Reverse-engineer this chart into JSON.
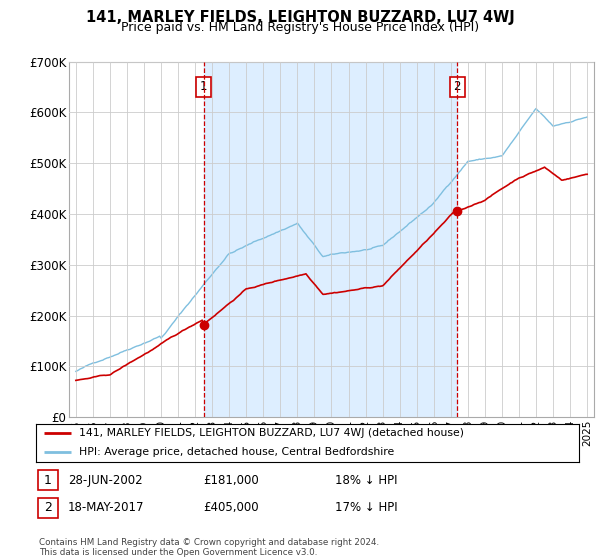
{
  "title": "141, MARLEY FIELDS, LEIGHTON BUZZARD, LU7 4WJ",
  "subtitle": "Price paid vs. HM Land Registry's House Price Index (HPI)",
  "ylim": [
    0,
    700000
  ],
  "yticks": [
    0,
    100000,
    200000,
    300000,
    400000,
    500000,
    600000,
    700000
  ],
  "ytick_labels": [
    "£0",
    "£100K",
    "£200K",
    "£300K",
    "£400K",
    "£500K",
    "£600K",
    "£700K"
  ],
  "hpi_color": "#7fbfdf",
  "price_color": "#cc0000",
  "fill_color": "#ddeeff",
  "marker1_x": 2002.5,
  "marker1_price": 181000,
  "marker2_x": 2017.38,
  "marker2_price": 405000,
  "legend_label_price": "141, MARLEY FIELDS, LEIGHTON BUZZARD, LU7 4WJ (detached house)",
  "legend_label_hpi": "HPI: Average price, detached house, Central Bedfordshire",
  "footer": "Contains HM Land Registry data © Crown copyright and database right 2024.\nThis data is licensed under the Open Government Licence v3.0.",
  "grid_color": "#cccccc",
  "xlim_left": 1994.6,
  "xlim_right": 2025.4
}
